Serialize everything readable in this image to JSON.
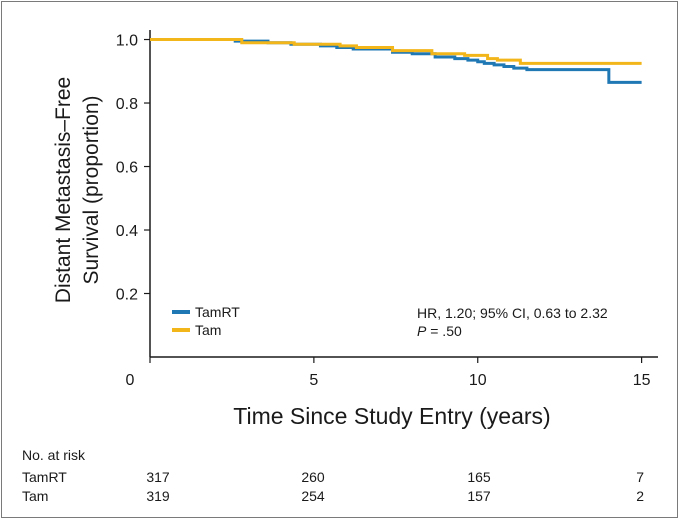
{
  "chart_data": {
    "type": "line",
    "title": "",
    "xlabel": "Time Since Study Entry (years)",
    "ylabel_line1": "Distant Metastasis–Free",
    "ylabel_line2": "Survival (proportion)",
    "xlim": [
      0,
      15.5
    ],
    "ylim": [
      0,
      1.03
    ],
    "x_ticks": [
      "0",
      "5",
      "10",
      "15"
    ],
    "x_tick_values": [
      0,
      5,
      10,
      15
    ],
    "y_ticks": [
      "0.2",
      "0.4",
      "0.6",
      "0.8",
      "1.0"
    ],
    "y_tick_values": [
      0.2,
      0.4,
      0.6,
      0.8,
      1.0
    ],
    "grid": false,
    "legend_position": "bottom-left",
    "series": [
      {
        "name": "TamRT",
        "color": "#1f77b4",
        "points": [
          [
            0,
            1.0
          ],
          [
            1.5,
            1.0
          ],
          [
            2.6,
            0.995
          ],
          [
            3.6,
            0.99
          ],
          [
            4.3,
            0.985
          ],
          [
            5.2,
            0.98
          ],
          [
            5.7,
            0.975
          ],
          [
            6.2,
            0.97
          ],
          [
            6.9,
            0.97
          ],
          [
            7.4,
            0.96
          ],
          [
            8.0,
            0.955
          ],
          [
            8.7,
            0.945
          ],
          [
            9.3,
            0.94
          ],
          [
            9.7,
            0.935
          ],
          [
            10.0,
            0.93
          ],
          [
            10.2,
            0.925
          ],
          [
            10.5,
            0.92
          ],
          [
            10.8,
            0.915
          ],
          [
            11.1,
            0.91
          ],
          [
            11.5,
            0.905
          ],
          [
            14.0,
            0.905
          ],
          [
            14.0,
            0.865
          ],
          [
            15.0,
            0.865
          ]
        ]
      },
      {
        "name": "Tam",
        "color": "#f2b51a",
        "points": [
          [
            0,
            1.0
          ],
          [
            2.1,
            1.0
          ],
          [
            2.8,
            0.99
          ],
          [
            4.1,
            0.99
          ],
          [
            4.4,
            0.985
          ],
          [
            5.4,
            0.985
          ],
          [
            5.8,
            0.98
          ],
          [
            6.3,
            0.975
          ],
          [
            7.0,
            0.975
          ],
          [
            7.4,
            0.965
          ],
          [
            8.2,
            0.965
          ],
          [
            8.6,
            0.955
          ],
          [
            9.2,
            0.955
          ],
          [
            9.6,
            0.95
          ],
          [
            10.3,
            0.94
          ],
          [
            10.6,
            0.935
          ],
          [
            11.3,
            0.925
          ],
          [
            15.0,
            0.925
          ]
        ]
      }
    ],
    "annotation_line1": "HR, 1.20; 95% CI, 0.63 to 2.32",
    "annotation_line2_italic": "P",
    "annotation_line2_rest": " = .50",
    "risk_table": {
      "header": "No. at risk",
      "rows": [
        {
          "name": "TamRT",
          "values": [
            "317",
            "260",
            "165",
            "7"
          ]
        },
        {
          "name": "Tam",
          "values": [
            "319",
            "254",
            "157",
            "2"
          ]
        }
      ]
    }
  }
}
